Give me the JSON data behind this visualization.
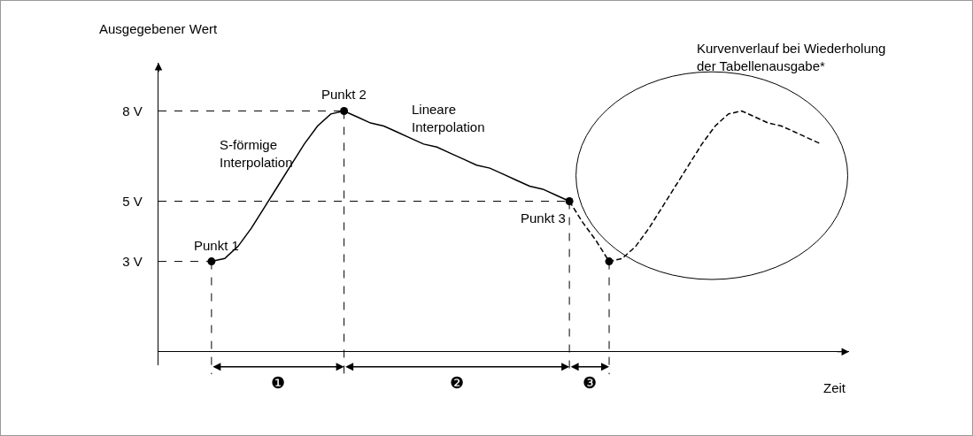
{
  "chart_data": {
    "type": "line",
    "xlabel": "Zeit",
    "ylabel": "Ausgegebener Wert",
    "categories": [
      null,
      null,
      null,
      null,
      null,
      null,
      null,
      null,
      null,
      null,
      null,
      null,
      null,
      null,
      null,
      null,
      null,
      null,
      null,
      null,
      null,
      null,
      null,
      null,
      null,
      null,
      null,
      null,
      null,
      null,
      null,
      null,
      null,
      null,
      null,
      null,
      null,
      null,
      null,
      null,
      null,
      null,
      null,
      null,
      null,
      null,
      null
    ],
    "ylim": [
      0,
      9.6
    ],
    "yticks": [
      {
        "value": 3,
        "label": "3 V"
      },
      {
        "value": 5,
        "label": "5 V"
      },
      {
        "value": 8,
        "label": "8 V"
      }
    ],
    "tick_labels": "y",
    "grid": false,
    "legend": false,
    "series": [
      {
        "color": "#000000",
        "line_style": "solid",
        "values": [
          3,
          3.1,
          3.5,
          4.1,
          4.8,
          5.5,
          6.2,
          6.9,
          7.5,
          7.9,
          8,
          7.8,
          7.6,
          7.5,
          7.3,
          7.1,
          6.9,
          6.8,
          6.6,
          6.4,
          6.2,
          6.1,
          5.9,
          5.7,
          5.5,
          5.4,
          5.2,
          5.0,
          null,
          null,
          null,
          null,
          null,
          null,
          null,
          null,
          null,
          null,
          null,
          null,
          null,
          null,
          null,
          null,
          null,
          null,
          null
        ]
      },
      {
        "color": "#000000",
        "line_style": "dashed",
        "values": [
          null,
          null,
          null,
          null,
          null,
          null,
          null,
          null,
          null,
          null,
          null,
          null,
          null,
          null,
          null,
          null,
          null,
          null,
          null,
          null,
          null,
          null,
          null,
          null,
          null,
          null,
          null,
          5,
          4.3,
          3.7,
          3,
          3.1,
          3.5,
          4.1,
          4.8,
          5.5,
          6.2,
          6.9,
          7.5,
          7.9,
          8,
          7.8,
          7.6,
          7.5,
          7.3,
          7.1,
          6.9
        ]
      },
      {
        "type": "scatter",
        "color": "#000000",
        "marker": "circle",
        "values": [
          3,
          null,
          null,
          null,
          null,
          null,
          null,
          null,
          null,
          null,
          8,
          null,
          null,
          null,
          null,
          null,
          null,
          null,
          null,
          null,
          null,
          null,
          null,
          null,
          null,
          null,
          null,
          5,
          null,
          null,
          3,
          null,
          null,
          null,
          null,
          null,
          null,
          null,
          null,
          null,
          null,
          null,
          null,
          null,
          null,
          null,
          null
        ]
      }
    ],
    "annotations": [
      "Punkt 1",
      "Punkt 2",
      "Punkt 3",
      "S-förmige\nInterpolation",
      "Lineare\nInterpolation",
      "Kurvenverlauf bei Wiederholung\nder Tabellenausgabe*",
      "❶",
      "❷",
      "❸"
    ]
  }
}
